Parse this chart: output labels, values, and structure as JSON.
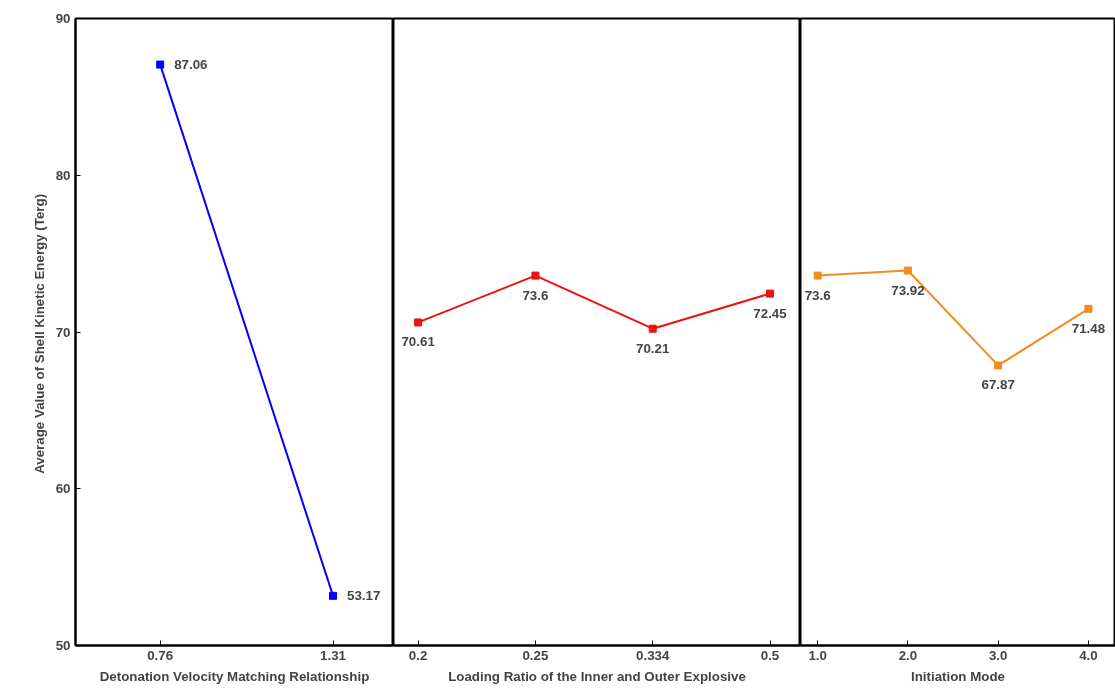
{
  "chart_data": [
    {
      "type": "line",
      "xlabel": "Detonation Velocity Matching Relationship",
      "ylabel": "Average Value of Shell Kinetic Energy  (Terg)",
      "categories": [
        "0.76",
        "1.31"
      ],
      "series": [
        {
          "color": "#0000ff",
          "values": [
            87.06,
            53.17
          ]
        }
      ],
      "ylim": [
        50,
        90
      ],
      "yticks": [
        50,
        60,
        70,
        80,
        90
      ],
      "marker": "square",
      "data_labels": true,
      "grid": false
    },
    {
      "type": "line",
      "xlabel": "Loading Ratio of the Inner and Outer Explosive",
      "categories": [
        "0.2",
        "0.25",
        "0.334",
        "0.5"
      ],
      "series": [
        {
          "color": "#ee1111",
          "values": [
            70.61,
            73.6,
            70.21,
            72.45
          ]
        }
      ],
      "ylim": [
        50,
        90
      ],
      "yticks": [
        50,
        60,
        70,
        80,
        90
      ],
      "tick_labels": "x",
      "marker": "square",
      "data_labels": true,
      "grid": false
    },
    {
      "type": "line",
      "xlabel": "Initiation Mode",
      "categories": [
        "1.0",
        "2.0",
        "3.0",
        "4.0"
      ],
      "series": [
        {
          "color": "#f28c1c",
          "values": [
            73.6,
            73.92,
            67.87,
            71.48
          ]
        }
      ],
      "ylim": [
        50,
        90
      ],
      "yticks": [
        50,
        60,
        70,
        80,
        90
      ],
      "tick_labels": "x",
      "marker": "square",
      "data_labels": true,
      "grid": false
    }
  ]
}
